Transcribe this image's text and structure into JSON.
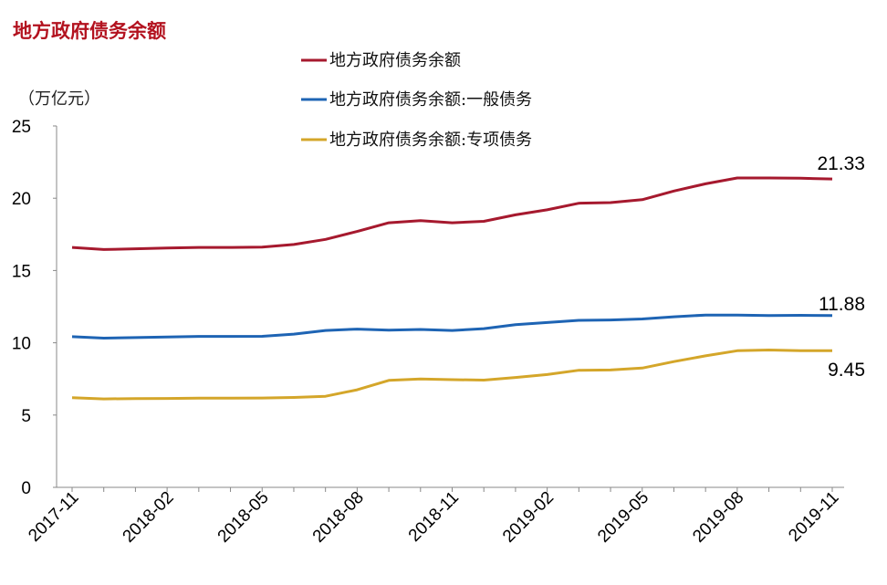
{
  "chart_data": {
    "type": "line",
    "title": "地方政府债务余额",
    "ylabel": "（万亿元）",
    "xlabel": "",
    "ylim": [
      0,
      25
    ],
    "yticks": [
      0,
      5,
      10,
      15,
      20,
      25
    ],
    "grid": false,
    "legend_position": "top-center",
    "x": [
      "2017-11",
      "2017-12",
      "2018-01",
      "2018-02",
      "2018-03",
      "2018-04",
      "2018-05",
      "2018-06",
      "2018-07",
      "2018-08",
      "2018-09",
      "2018-10",
      "2018-11",
      "2018-12",
      "2019-01",
      "2019-02",
      "2019-03",
      "2019-04",
      "2019-05",
      "2019-06",
      "2019-07",
      "2019-08",
      "2019-09",
      "2019-10",
      "2019-11"
    ],
    "xticks": [
      "2017-11",
      "2018-02",
      "2018-05",
      "2018-08",
      "2018-11",
      "2019-02",
      "2019-05",
      "2019-08",
      "2019-11"
    ],
    "series": [
      {
        "name": "地方政府债务余额",
        "color": "#a6192e",
        "values": [
          16.6,
          16.45,
          16.5,
          16.55,
          16.6,
          16.6,
          16.62,
          16.8,
          17.15,
          17.7,
          18.3,
          18.45,
          18.3,
          18.4,
          18.85,
          19.2,
          19.65,
          19.7,
          19.9,
          20.5,
          21.0,
          21.4,
          21.4,
          21.38,
          21.33
        ],
        "end_label": "21.33"
      },
      {
        "name": "地方政府债务余额:一般债务",
        "color": "#1e64b4",
        "values": [
          10.42,
          10.32,
          10.36,
          10.4,
          10.44,
          10.44,
          10.45,
          10.6,
          10.85,
          10.95,
          10.88,
          10.92,
          10.85,
          10.98,
          11.25,
          11.4,
          11.55,
          11.58,
          11.65,
          11.8,
          11.92,
          11.92,
          11.88,
          11.9,
          11.88
        ],
        "end_label": "11.88"
      },
      {
        "name": "地方政府债务余额:专项债务",
        "color": "#d4a62a",
        "values": [
          6.2,
          6.12,
          6.14,
          6.15,
          6.17,
          6.17,
          6.18,
          6.22,
          6.3,
          6.75,
          7.4,
          7.5,
          7.45,
          7.42,
          7.6,
          7.8,
          8.1,
          8.12,
          8.25,
          8.7,
          9.1,
          9.45,
          9.5,
          9.45,
          9.45
        ],
        "end_label": "9.45"
      }
    ]
  }
}
